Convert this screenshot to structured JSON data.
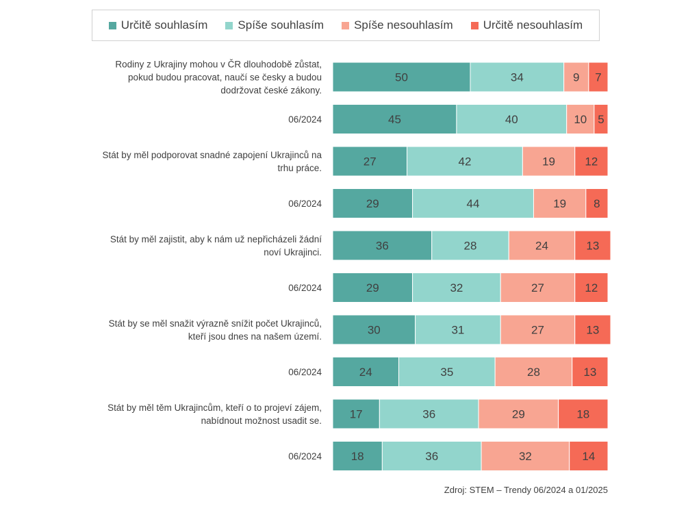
{
  "legend": [
    {
      "label": "Určitě souhlasím",
      "color": "#55a8a0"
    },
    {
      "label": "Spíše souhlasím",
      "color": "#92d5cc"
    },
    {
      "label": "Spíše nesouhlasím",
      "color": "#f8a592"
    },
    {
      "label": "Určitě nesouhlasím",
      "color": "#f56a56"
    }
  ],
  "source": "Zdroj: STEM – Trendy 06/2024 a 01/2025",
  "chart_data": {
    "type": "bar",
    "orientation": "horizontal",
    "stacked": true,
    "categories": [
      [
        "Rodiny z Ukrajiny mohou v ČR dlouhodobě zůstat,",
        "pokud budou pracovat, naučí se česky a budou",
        "dodržovat české zákony."
      ],
      [
        "06/2024"
      ],
      [
        "Stát by měl podporovat snadné zapojení Ukrajinců na",
        "trhu práce."
      ],
      [
        "06/2024"
      ],
      [
        "Stát by měl zajistit, aby k nám už nepřicházeli žádní",
        "noví Ukrajinci."
      ],
      [
        "06/2024"
      ],
      [
        "Stát by se měl snažit výrazně snížit počet Ukrajinců,",
        "kteří jsou dnes na našem území."
      ],
      [
        "06/2024"
      ],
      [
        "Stát by měl těm Ukrajincům, kteří o to projeví zájem,",
        "nabídnout možnost usadit se."
      ],
      [
        "06/2024"
      ]
    ],
    "series": [
      {
        "name": "Určitě souhlasím",
        "values": [
          50,
          45,
          27,
          29,
          36,
          29,
          30,
          24,
          17,
          18
        ]
      },
      {
        "name": "Spíše souhlasím",
        "values": [
          34,
          40,
          42,
          44,
          28,
          32,
          31,
          35,
          36,
          36
        ]
      },
      {
        "name": "Spíše nesouhlasím",
        "values": [
          9,
          10,
          19,
          19,
          24,
          27,
          27,
          28,
          29,
          32
        ]
      },
      {
        "name": "Určitě nesouhlasím",
        "values": [
          7,
          5,
          12,
          8,
          13,
          12,
          13,
          13,
          18,
          14
        ]
      }
    ],
    "xlim": [
      0,
      100
    ],
    "data_labels": true,
    "legend_position": "top"
  }
}
